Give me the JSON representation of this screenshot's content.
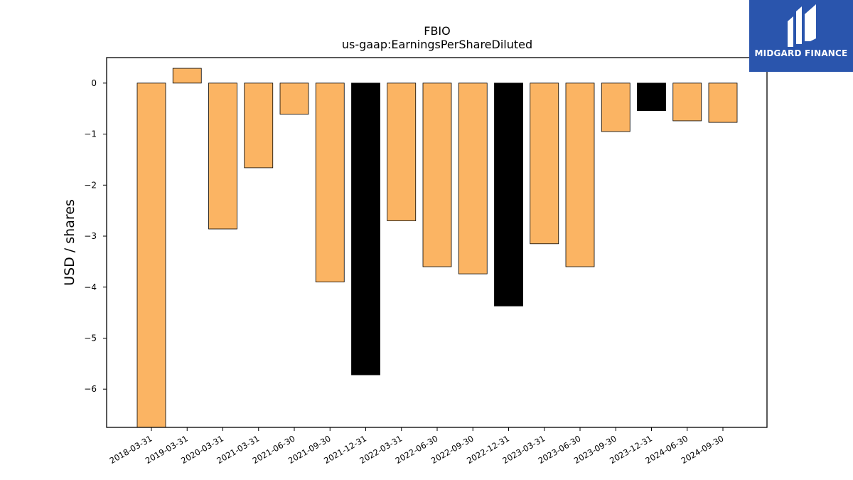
{
  "brand": {
    "name": "MIDGARD FINANCE",
    "background": "#2a55ad"
  },
  "chart_data": {
    "type": "bar",
    "title": "FBIO",
    "subtitle": "us-gaap:EarningsPerShareDiluted",
    "xlabel": "",
    "ylabel": "USD / shares",
    "categories": [
      "2018-03-31",
      "2019-03-31",
      "2020-03-31",
      "2021-03-31",
      "2021-06-30",
      "2021-09-30",
      "2021-12-31",
      "2022-03-31",
      "2022-06-30",
      "2022-09-30",
      "2022-12-31",
      "2023-03-31",
      "2023-06-30",
      "2023-09-30",
      "2023-12-31",
      "2024-06-30",
      "2024-09-30"
    ],
    "values": [
      -6.8,
      0.29,
      -2.86,
      -1.66,
      -0.61,
      -3.9,
      -5.72,
      -2.7,
      -3.6,
      -3.74,
      -4.37,
      -3.15,
      -3.6,
      -0.95,
      -0.54,
      -0.74,
      -0.77
    ],
    "bar_colors": [
      "#fbb463",
      "#fbb463",
      "#fbb463",
      "#fbb463",
      "#fbb463",
      "#fbb463",
      "#000000",
      "#fbb463",
      "#fbb463",
      "#fbb463",
      "#000000",
      "#fbb463",
      "#fbb463",
      "#fbb463",
      "#000000",
      "#fbb463",
      "#fbb463"
    ],
    "ylim": [
      -6.75,
      0.5
    ],
    "yticks": [
      0,
      -1,
      -2,
      -3,
      -4,
      -5,
      -6
    ],
    "ytick_labels": [
      "0",
      "−1",
      "−2",
      "−3",
      "−4",
      "−5",
      "−6"
    ],
    "grid": false,
    "legend": "none"
  }
}
